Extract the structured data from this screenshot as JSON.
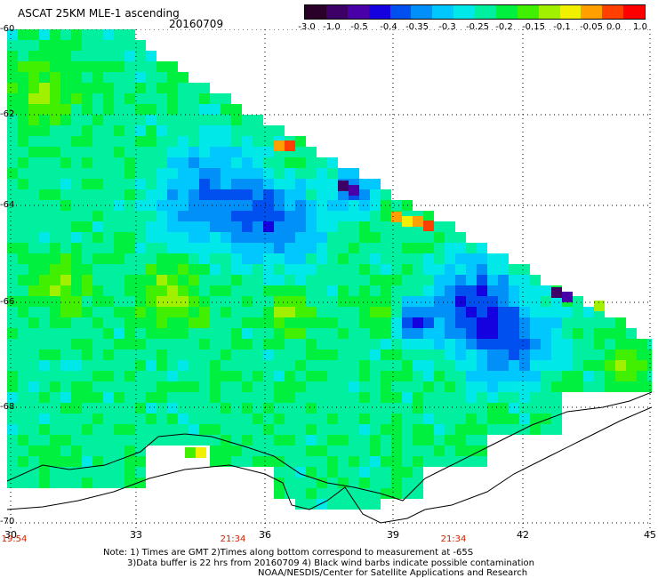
{
  "header": {
    "title": "ASCAT 25KM MLE-1 ascending",
    "date": "20160709"
  },
  "colorbar": {
    "colors": [
      "#2a0028",
      "#3d0066",
      "#4a00a8",
      "#1500e0",
      "#0050f0",
      "#0090f8",
      "#00c8ff",
      "#00e8e8",
      "#00f0a0",
      "#00f040",
      "#40f000",
      "#a0f000",
      "#f0f000",
      "#ffa000",
      "#ff4000",
      "#ff0000"
    ],
    "labels": [
      "-3.0",
      "-1.0",
      "-0.5",
      "-0.4",
      "-0.35",
      "-0.3",
      "-0.25",
      "-0.2",
      "-0.15",
      "-0.1",
      "-0.05",
      "0.0",
      "1.0"
    ]
  },
  "axes": {
    "lat_labels": [
      "-60",
      "-62",
      "-64",
      "-66",
      "-68",
      "-70"
    ],
    "lon_labels": [
      "30",
      "33",
      "36",
      "39",
      "42",
      "45"
    ],
    "lat_range": [
      -60,
      -70
    ],
    "lon_range": [
      30,
      45
    ],
    "grid": "dotted"
  },
  "times": [
    "19:54",
    "21:34",
    "21:34"
  ],
  "notes": {
    "line1": "Note: 1) Times are GMT 2)Times along bottom correspond to measurement at -65S",
    "line2": "3)Data buffer is 22 hrs from 20160709 4) Black wind barbs indicate possible contamination",
    "line3": "NOAA/NESDIS/Center for Satellite Applications and Research"
  }
}
